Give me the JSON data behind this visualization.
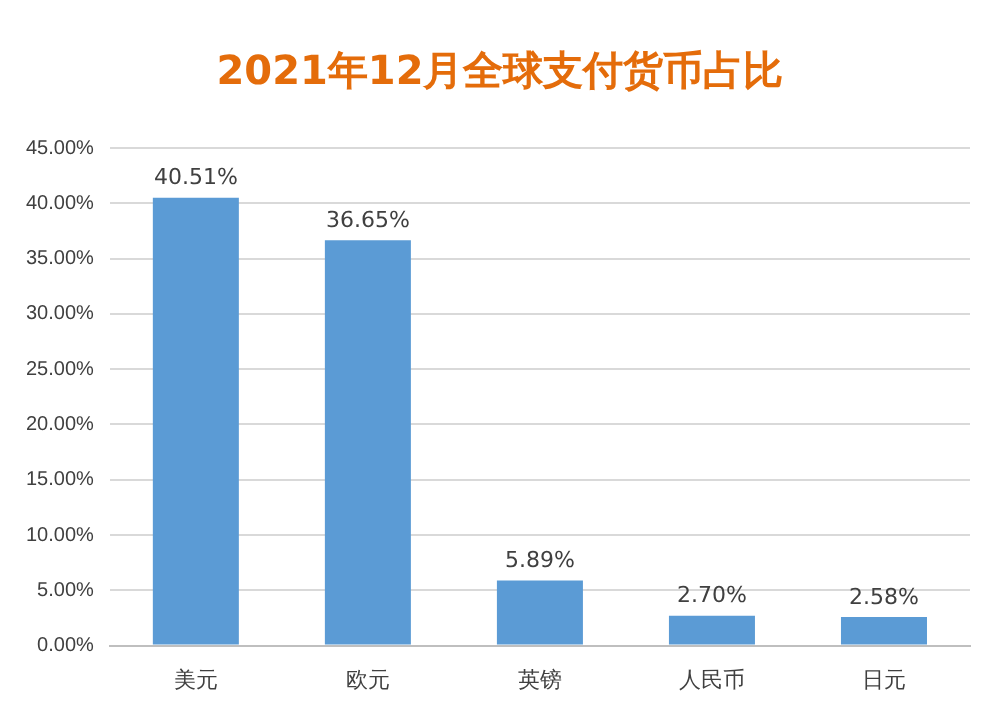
{
  "chart_data": {
    "type": "bar",
    "title": "2021年12月全球支付货币占比",
    "categories": [
      "美元",
      "欧元",
      "英镑",
      "人民币",
      "日元"
    ],
    "values": [
      40.51,
      36.65,
      5.89,
      2.7,
      2.58
    ],
    "value_labels": [
      "40.51%",
      "36.65%",
      "5.89%",
      "2.70%",
      "2.58%"
    ],
    "color": "#5b9bd5",
    "ylim": [
      0,
      45
    ],
    "yticks": [
      {
        "value": 0,
        "label": "0.00%"
      },
      {
        "value": 5,
        "label": "5.00%"
      },
      {
        "value": 10,
        "label": "10.00%"
      },
      {
        "value": 15,
        "label": "15.00%"
      },
      {
        "value": 20,
        "label": "20.00%"
      },
      {
        "value": 25,
        "label": "25.00%"
      },
      {
        "value": 30,
        "label": "30.00%"
      },
      {
        "value": 35,
        "label": "35.00%"
      },
      {
        "value": 40,
        "label": "40.00%"
      },
      {
        "value": 45,
        "label": "45.00%"
      }
    ],
    "grid": "y"
  }
}
